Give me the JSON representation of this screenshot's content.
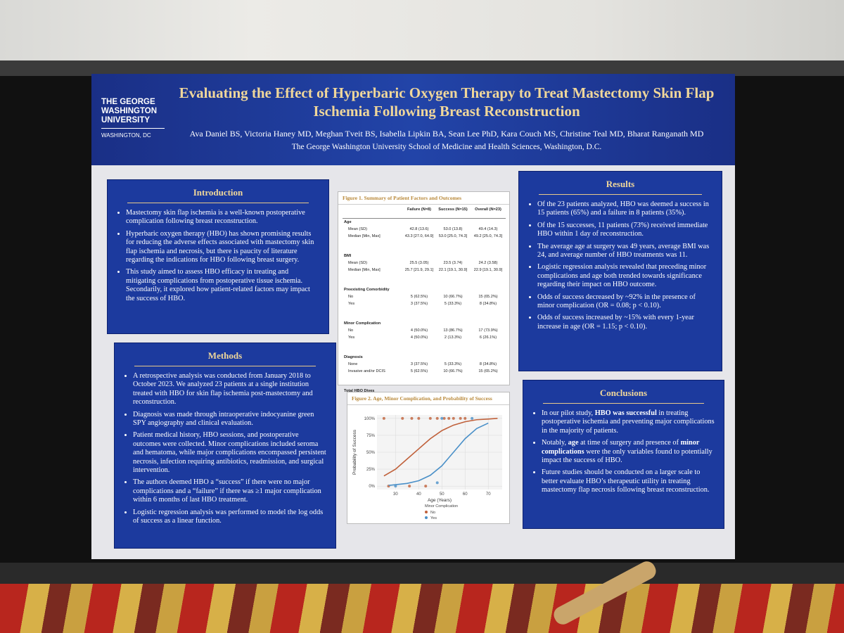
{
  "header": {
    "logo": [
      "THE GEORGE",
      "WASHINGTON",
      "UNIVERSITY",
      "WASHINGTON, DC"
    ],
    "title": "Evaluating the Effect of Hyperbaric Oxygen Therapy to Treat Mastectomy Skin Flap Ischemia Following Breast Reconstruction",
    "authors": "Ava Daniel BS, Victoria Haney MD, Meghan Tveit BS, Isabella Lipkin BA, Sean Lee PhD, Kara Couch MS, Christine Teal MD, Bharat Ranganath MD",
    "affiliation": "The George Washington University School of Medicine and Health Sciences, Washington, D.C."
  },
  "introduction": {
    "heading": "Introduction",
    "bullets": [
      "Mastectomy skin flap ischemia is a well-known postoperative complication following breast reconstruction.",
      "Hyperbaric oxygen therapy (HBO) has shown promising results for reducing the adverse effects associated with mastectomy skin flap ischemia and necrosis, but there is paucity of literature regarding the indications for HBO following breast surgery.",
      "This study aimed to assess HBO efficacy in treating and mitigating complications from postoperative tissue ischemia. Secondarily, it explored how patient-related factors may impact the success of HBO."
    ]
  },
  "methods": {
    "heading": "Methods",
    "bullets": [
      "A retrospective analysis was conducted from January 2018 to October 2023. We analyzed 23 patients at a single institution treated with HBO for skin flap ischemia post-mastectomy and reconstruction.",
      "Diagnosis was made through intraoperative indocyanine green SPY angiography and clinical evaluation.",
      "Patient medical history, HBO sessions, and postoperative outcomes were collected. Minor complications included seroma and hematoma, while major complications encompassed persistent necrosis, infection requiring antibiotics, readmission, and surgical intervention.",
      "The authors deemed HBO a “success” if there were no major complications and a “failure” if there was ≥1 major complication within 6 months of last HBO treatment.",
      "Logistic regression analysis was performed to model the log odds of success as a linear function."
    ]
  },
  "results": {
    "heading": "Results",
    "bullets": [
      "Of the 23 patients analyzed, HBO was deemed a success in 15 patients (65%) and a failure in 8 patients (35%).",
      "Of the 15 successes, 11 patients (73%) received immediate HBO within 1 day of reconstruction.",
      "The average age at surgery was 49 years, average BMI was 24, and average number of HBO treatments was 11.",
      "Logistic regression analysis revealed that preceding minor complications and age both trended towards significance regarding their impact on HBO outcome.",
      "Odds of success decreased by ~92% in the presence of minor complication (OR = 0.08; p < 0.10).",
      "Odds of success increased by ~15% with every 1-year increase in age (OR = 1.15; p < 0.10)."
    ]
  },
  "conclusions": {
    "heading": "Conclusions",
    "bullets": [
      [
        "In our pilot study, ",
        "HBO was successful",
        " in treating postoperative ischemia and preventing major complications in the majority of patients."
      ],
      [
        "Notably, ",
        "age",
        " at time of surgery and presence of ",
        "minor complications",
        " were the only variables found to potentially impact the success of HBO."
      ],
      [
        "Future studies should be conducted on a larger scale to better evaluate HBO’s therapeutic utility in treating mastectomy flap necrosis following breast reconstruction."
      ]
    ]
  },
  "figure1": {
    "title": "Figure 1. Summary of Patient Factors and Outcomes",
    "columns": [
      "Failure (N=8)",
      "Success (N=15)",
      "Overall (N=23)"
    ],
    "sections": [
      {
        "label": "Age",
        "rows": [
          {
            "label": "Mean (SD)",
            "cells": [
              "42.8 (13.6)",
              "53.0 (13.8)",
              "49.4 (14.3)"
            ]
          },
          {
            "label": "Median [Min, Max]",
            "cells": [
              "43.3 [27.0, 64.9]",
              "53.0 [25.0, 74.3]",
              "49.2 [25.0, 74.3]"
            ]
          }
        ]
      },
      {
        "label": "BMI",
        "rows": [
          {
            "label": "Mean (SD)",
            "cells": [
              "25.5 (3.05)",
              "23.5 (3.74)",
              "24.2 (3.58)"
            ]
          },
          {
            "label": "Median [Min, Max]",
            "cells": [
              "25.7 [21.9, 29.1]",
              "22.1 [19.1, 30.9]",
              "22.9 [19.1, 30.9]"
            ]
          }
        ]
      },
      {
        "label": "Preexisting Comorbidity",
        "rows": [
          {
            "label": "No",
            "cells": [
              "5 (62.5%)",
              "10 (66.7%)",
              "15 (65.2%)"
            ]
          },
          {
            "label": "Yes",
            "cells": [
              "3 (37.5%)",
              "5 (33.3%)",
              "8 (34.8%)"
            ]
          }
        ]
      },
      {
        "label": "Minor Complication",
        "rows": [
          {
            "label": "No",
            "cells": [
              "4 (50.0%)",
              "13 (86.7%)",
              "17 (73.9%)"
            ]
          },
          {
            "label": "Yes",
            "cells": [
              "4 (50.0%)",
              "2 (13.3%)",
              "6 (26.1%)"
            ]
          }
        ]
      },
      {
        "label": "Diagnosis",
        "rows": [
          {
            "label": "None",
            "cells": [
              "3 (37.5%)",
              "5 (33.3%)",
              "8 (34.8%)"
            ]
          },
          {
            "label": "Invasive and/or DCIS",
            "cells": [
              "5 (62.5%)",
              "10 (66.7%)",
              "15 (65.2%)"
            ]
          }
        ]
      },
      {
        "label": "Total HBO Dives",
        "rows": [
          {
            "label": "Mean (SD)",
            "cells": [
              "10.8 (3.38)",
              "11.3 (5.11)",
              "11.0 (4.51)"
            ]
          },
          {
            "label": "Median [Min, Max]",
            "cells": [
              "9.50 [6.00, 16.0]",
              "9.00 [5.00, 20.0]",
              "9.00 [5.00, 20.0]"
            ]
          }
        ]
      }
    ]
  },
  "figure2": {
    "type": "line",
    "title": "Figure 2. Age, Minor Complication, and Probability of Success",
    "xlabel": "Age (Years)",
    "ylabel": "Probability of Success",
    "legend_title": "Minor Complication",
    "xlim": [
      22,
      76
    ],
    "ylim": [
      -5,
      105
    ],
    "xticks": [
      30,
      40,
      50,
      60,
      70
    ],
    "yticks": [
      {
        "value": 0,
        "label": "0%"
      },
      {
        "value": 25,
        "label": "25%"
      },
      {
        "value": 50,
        "label": "50%"
      },
      {
        "value": 75,
        "label": "75%"
      },
      {
        "value": 100,
        "label": "100%"
      }
    ],
    "series": [
      {
        "name": "No",
        "color": "#c0603a",
        "x": [
          25,
          30,
          35,
          40,
          45,
          50,
          55,
          60,
          65,
          70,
          74
        ],
        "values": [
          15,
          25,
          40,
          55,
          70,
          82,
          90,
          95,
          98,
          99,
          100
        ],
        "points_x": [
          25,
          33,
          37,
          40,
          45,
          48,
          51,
          53,
          55,
          58,
          60,
          43,
          27,
          36
        ],
        "points_y": [
          100,
          100,
          100,
          100,
          100,
          100,
          100,
          100,
          100,
          100,
          100,
          0,
          0,
          0
        ]
      },
      {
        "name": "Yes",
        "color": "#4a90c8",
        "x": [
          27,
          35,
          40,
          45,
          50,
          55,
          60,
          65,
          70
        ],
        "values": [
          1,
          4,
          8,
          16,
          30,
          50,
          70,
          85,
          93
        ],
        "points_x": [
          50,
          63,
          30,
          48
        ],
        "points_y": [
          100,
          100,
          0,
          5
        ]
      }
    ]
  }
}
